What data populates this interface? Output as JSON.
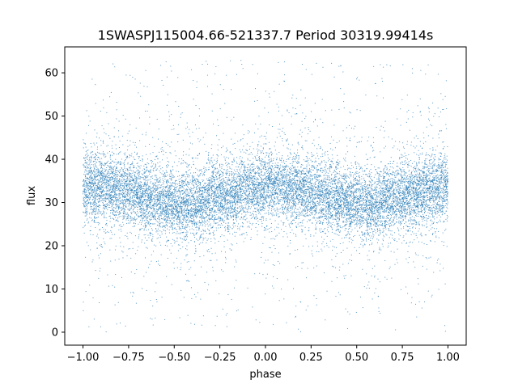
{
  "chart_data": {
    "type": "scatter",
    "title": "1SWASPJ115004.66-521337.7 Period 30319.99414s",
    "xlabel": "phase",
    "ylabel": "flux",
    "xlim": [
      -1.1,
      1.1
    ],
    "ylim": [
      -3,
      66
    ],
    "xticks": [
      -1.0,
      -0.75,
      -0.5,
      -0.25,
      0.0,
      0.25,
      0.5,
      0.75,
      1.0
    ],
    "xtick_labels": [
      "−1.00",
      "−0.75",
      "−0.50",
      "−0.25",
      "0.00",
      "0.25",
      "0.50",
      "0.75",
      "1.00"
    ],
    "yticks": [
      0,
      10,
      20,
      30,
      40,
      50,
      60
    ],
    "ytick_labels": [
      "0",
      "10",
      "20",
      "30",
      "40",
      "50",
      "60"
    ],
    "grid": false,
    "marker_color": "#1f77b4",
    "series": [
      {
        "phase_range": [
          -1.0,
          1.0
        ],
        "light_curve_model": [
          {
            "phase": -1.0,
            "flux": 34
          },
          {
            "phase": -0.75,
            "flux": 32.5
          },
          {
            "phase": -0.6,
            "flux": 30.5
          },
          {
            "phase": -0.42,
            "flux": 29.5
          },
          {
            "phase": -0.25,
            "flux": 31.5
          },
          {
            "phase": 0.0,
            "flux": 34
          },
          {
            "phase": 0.25,
            "flux": 32.5
          },
          {
            "phase": 0.4,
            "flux": 30.5
          },
          {
            "phase": 0.58,
            "flux": 29.5
          },
          {
            "phase": 0.75,
            "flux": 31.5
          },
          {
            "phase": 1.0,
            "flux": 34
          }
        ],
        "flux_range": [
          0,
          63
        ]
      }
    ]
  }
}
